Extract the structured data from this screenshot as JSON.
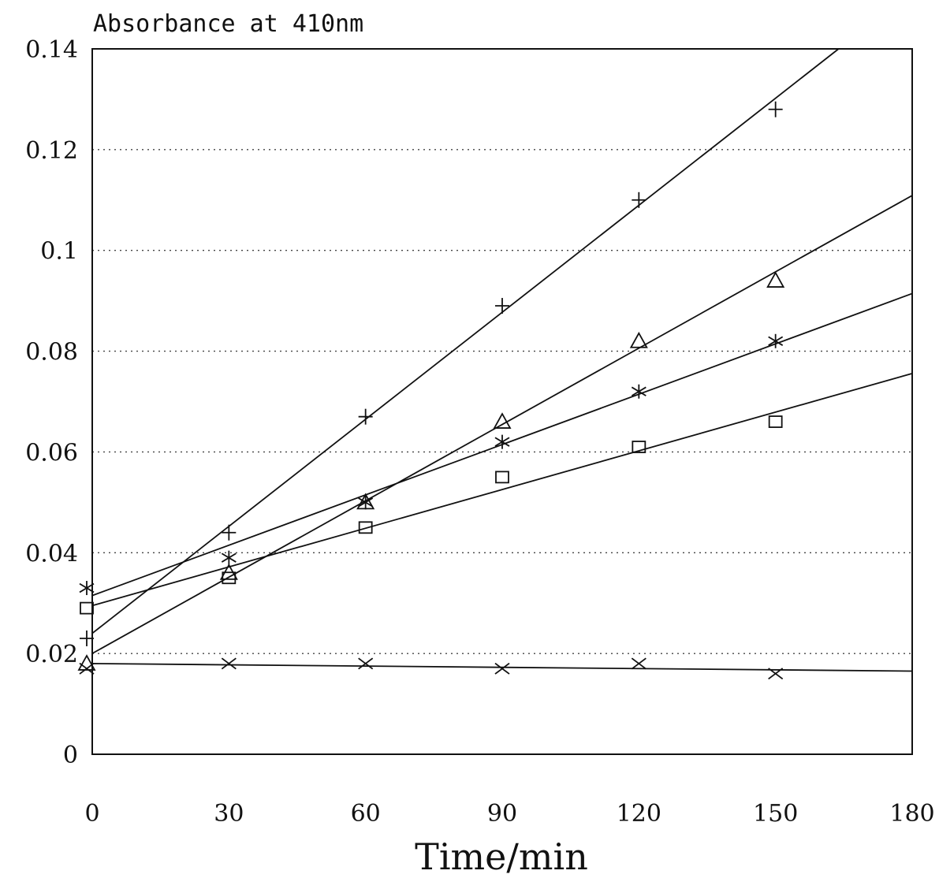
{
  "chart_data": {
    "type": "scatter",
    "title": "",
    "ylabel": "Absorbance at 410nm",
    "xlabel": "Time/min",
    "xlim": [
      0,
      180
    ],
    "ylim": [
      0,
      0.14
    ],
    "x_ticks": [
      0,
      30,
      60,
      90,
      120,
      150,
      180
    ],
    "x_tick_labels": [
      "0",
      "30",
      "60",
      "90",
      "120",
      "150",
      "180"
    ],
    "y_ticks": [
      0,
      0.02,
      0.04,
      0.06,
      0.08,
      0.1,
      0.12,
      0.14
    ],
    "y_tick_labels": [
      "0",
      "0.02",
      "0.04",
      "0.06",
      "0.08",
      "0.1",
      "0.12",
      "0.14"
    ],
    "grid": "horizontal dotted",
    "legend": "none",
    "series": [
      {
        "marker": "plus",
        "x": [
          0,
          30,
          60,
          90,
          120,
          150
        ],
        "y": [
          0.023,
          0.044,
          0.067,
          0.089,
          0.11,
          0.128
        ],
        "fit": [
          0.024,
          0.000708
        ]
      },
      {
        "marker": "triangle",
        "x": [
          0,
          30,
          60,
          90,
          120,
          150
        ],
        "y": [
          0.018,
          0.036,
          0.05,
          0.066,
          0.082,
          0.094
        ],
        "fit": [
          0.02,
          0.000505
        ]
      },
      {
        "marker": "asterisk",
        "x": [
          0,
          30,
          60,
          90,
          120,
          150
        ],
        "y": [
          0.033,
          0.039,
          0.05,
          0.062,
          0.072,
          0.082
        ],
        "fit": [
          0.0315,
          0.000333
        ]
      },
      {
        "marker": "square",
        "x": [
          0,
          30,
          60,
          90,
          120,
          150
        ],
        "y": [
          0.029,
          0.035,
          0.045,
          0.055,
          0.061,
          0.066
        ],
        "fit": [
          0.0295,
          0.000256
        ]
      },
      {
        "marker": "x",
        "x": [
          0,
          30,
          60,
          90,
          120,
          150
        ],
        "y": [
          0.017,
          0.018,
          0.018,
          0.017,
          0.018,
          0.016
        ],
        "fit": [
          0.018,
          -8.3e-06
        ]
      }
    ]
  }
}
